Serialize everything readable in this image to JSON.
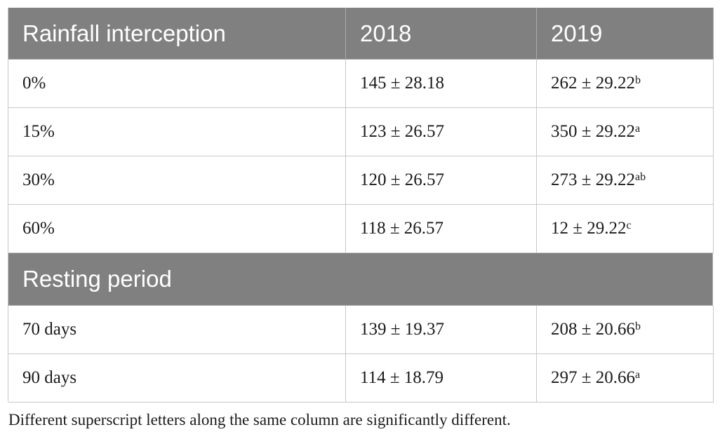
{
  "table": {
    "header": [
      "Rainfall interception",
      "2018",
      "2019"
    ],
    "rows": [
      [
        "0%",
        "145 ± 28.18",
        {
          "text": "262 ± 29.22",
          "sup": "b"
        }
      ],
      [
        "15%",
        "123 ± 26.57",
        {
          "text": "350 ± 29.22",
          "sup": "a"
        }
      ],
      [
        "30%",
        "120 ± 26.57",
        {
          "text": "273 ± 29.22",
          "sup": "ab"
        }
      ],
      [
        "60%",
        "118 ± 26.57",
        {
          "text": "12 ± 29.22",
          "sup": "c"
        }
      ]
    ],
    "section_title": "Resting period",
    "section_rows": [
      [
        "70 days",
        "139 ± 19.37",
        {
          "text": "208 ± 20.66",
          "sup": "b"
        }
      ],
      [
        "90 days",
        "114 ± 18.79",
        {
          "text": "297 ± 20.66",
          "sup": "a"
        }
      ]
    ]
  },
  "footnote": "Different superscript letters along the same column are significantly different."
}
